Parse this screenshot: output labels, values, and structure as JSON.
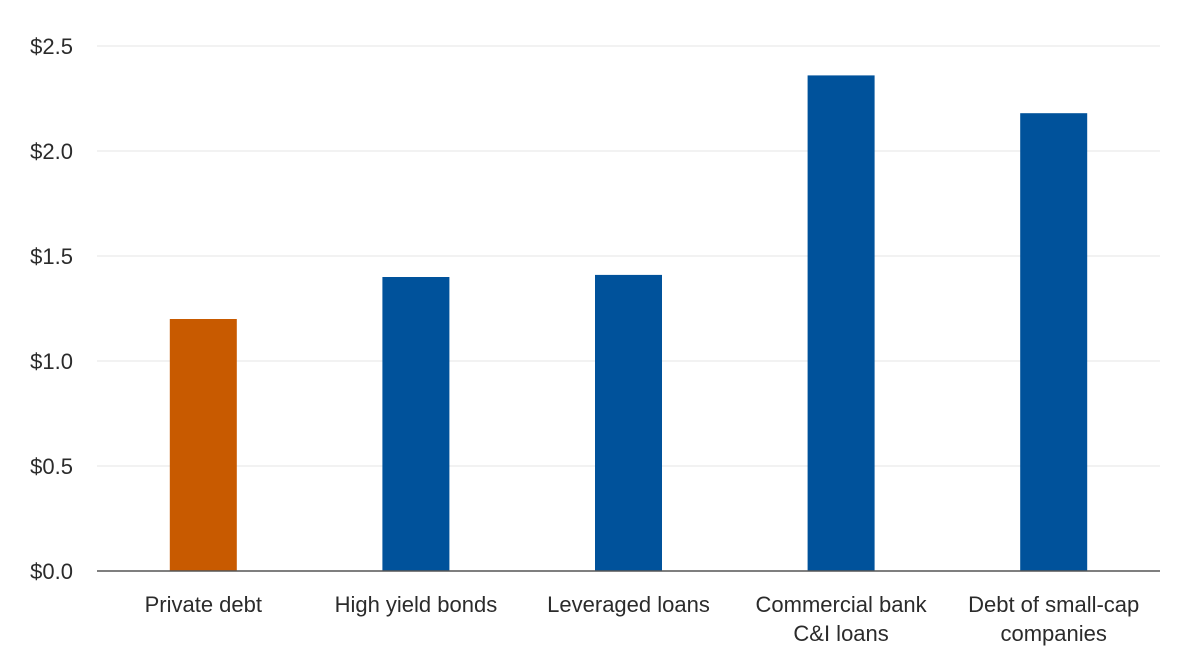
{
  "chart_data": {
    "type": "bar",
    "title": "",
    "xlabel": "",
    "ylabel": "",
    "categories": [
      "Private debt",
      "High yield bonds",
      "Leveraged loans",
      "Commercial bank C&I loans",
      "Debt of small-cap companies"
    ],
    "category_lines": [
      [
        "Private debt"
      ],
      [
        "High yield bonds"
      ],
      [
        "Leveraged loans"
      ],
      [
        "Commercial bank",
        "C&I loans"
      ],
      [
        "Debt of small-cap",
        "companies"
      ]
    ],
    "values": [
      1.2,
      1.4,
      1.41,
      2.36,
      2.18
    ],
    "colors": [
      "#c85a00",
      "#00529b",
      "#00529b",
      "#00529b",
      "#00529b"
    ],
    "ylim": [
      0,
      2.5
    ],
    "yticks": [
      0.0,
      0.5,
      1.0,
      1.5,
      2.0,
      2.5
    ],
    "ytick_labels": [
      "$0.0",
      "$0.5",
      "$1.0",
      "$1.5",
      "$2.0",
      "$2.5"
    ],
    "grid": true,
    "legend": "none"
  }
}
